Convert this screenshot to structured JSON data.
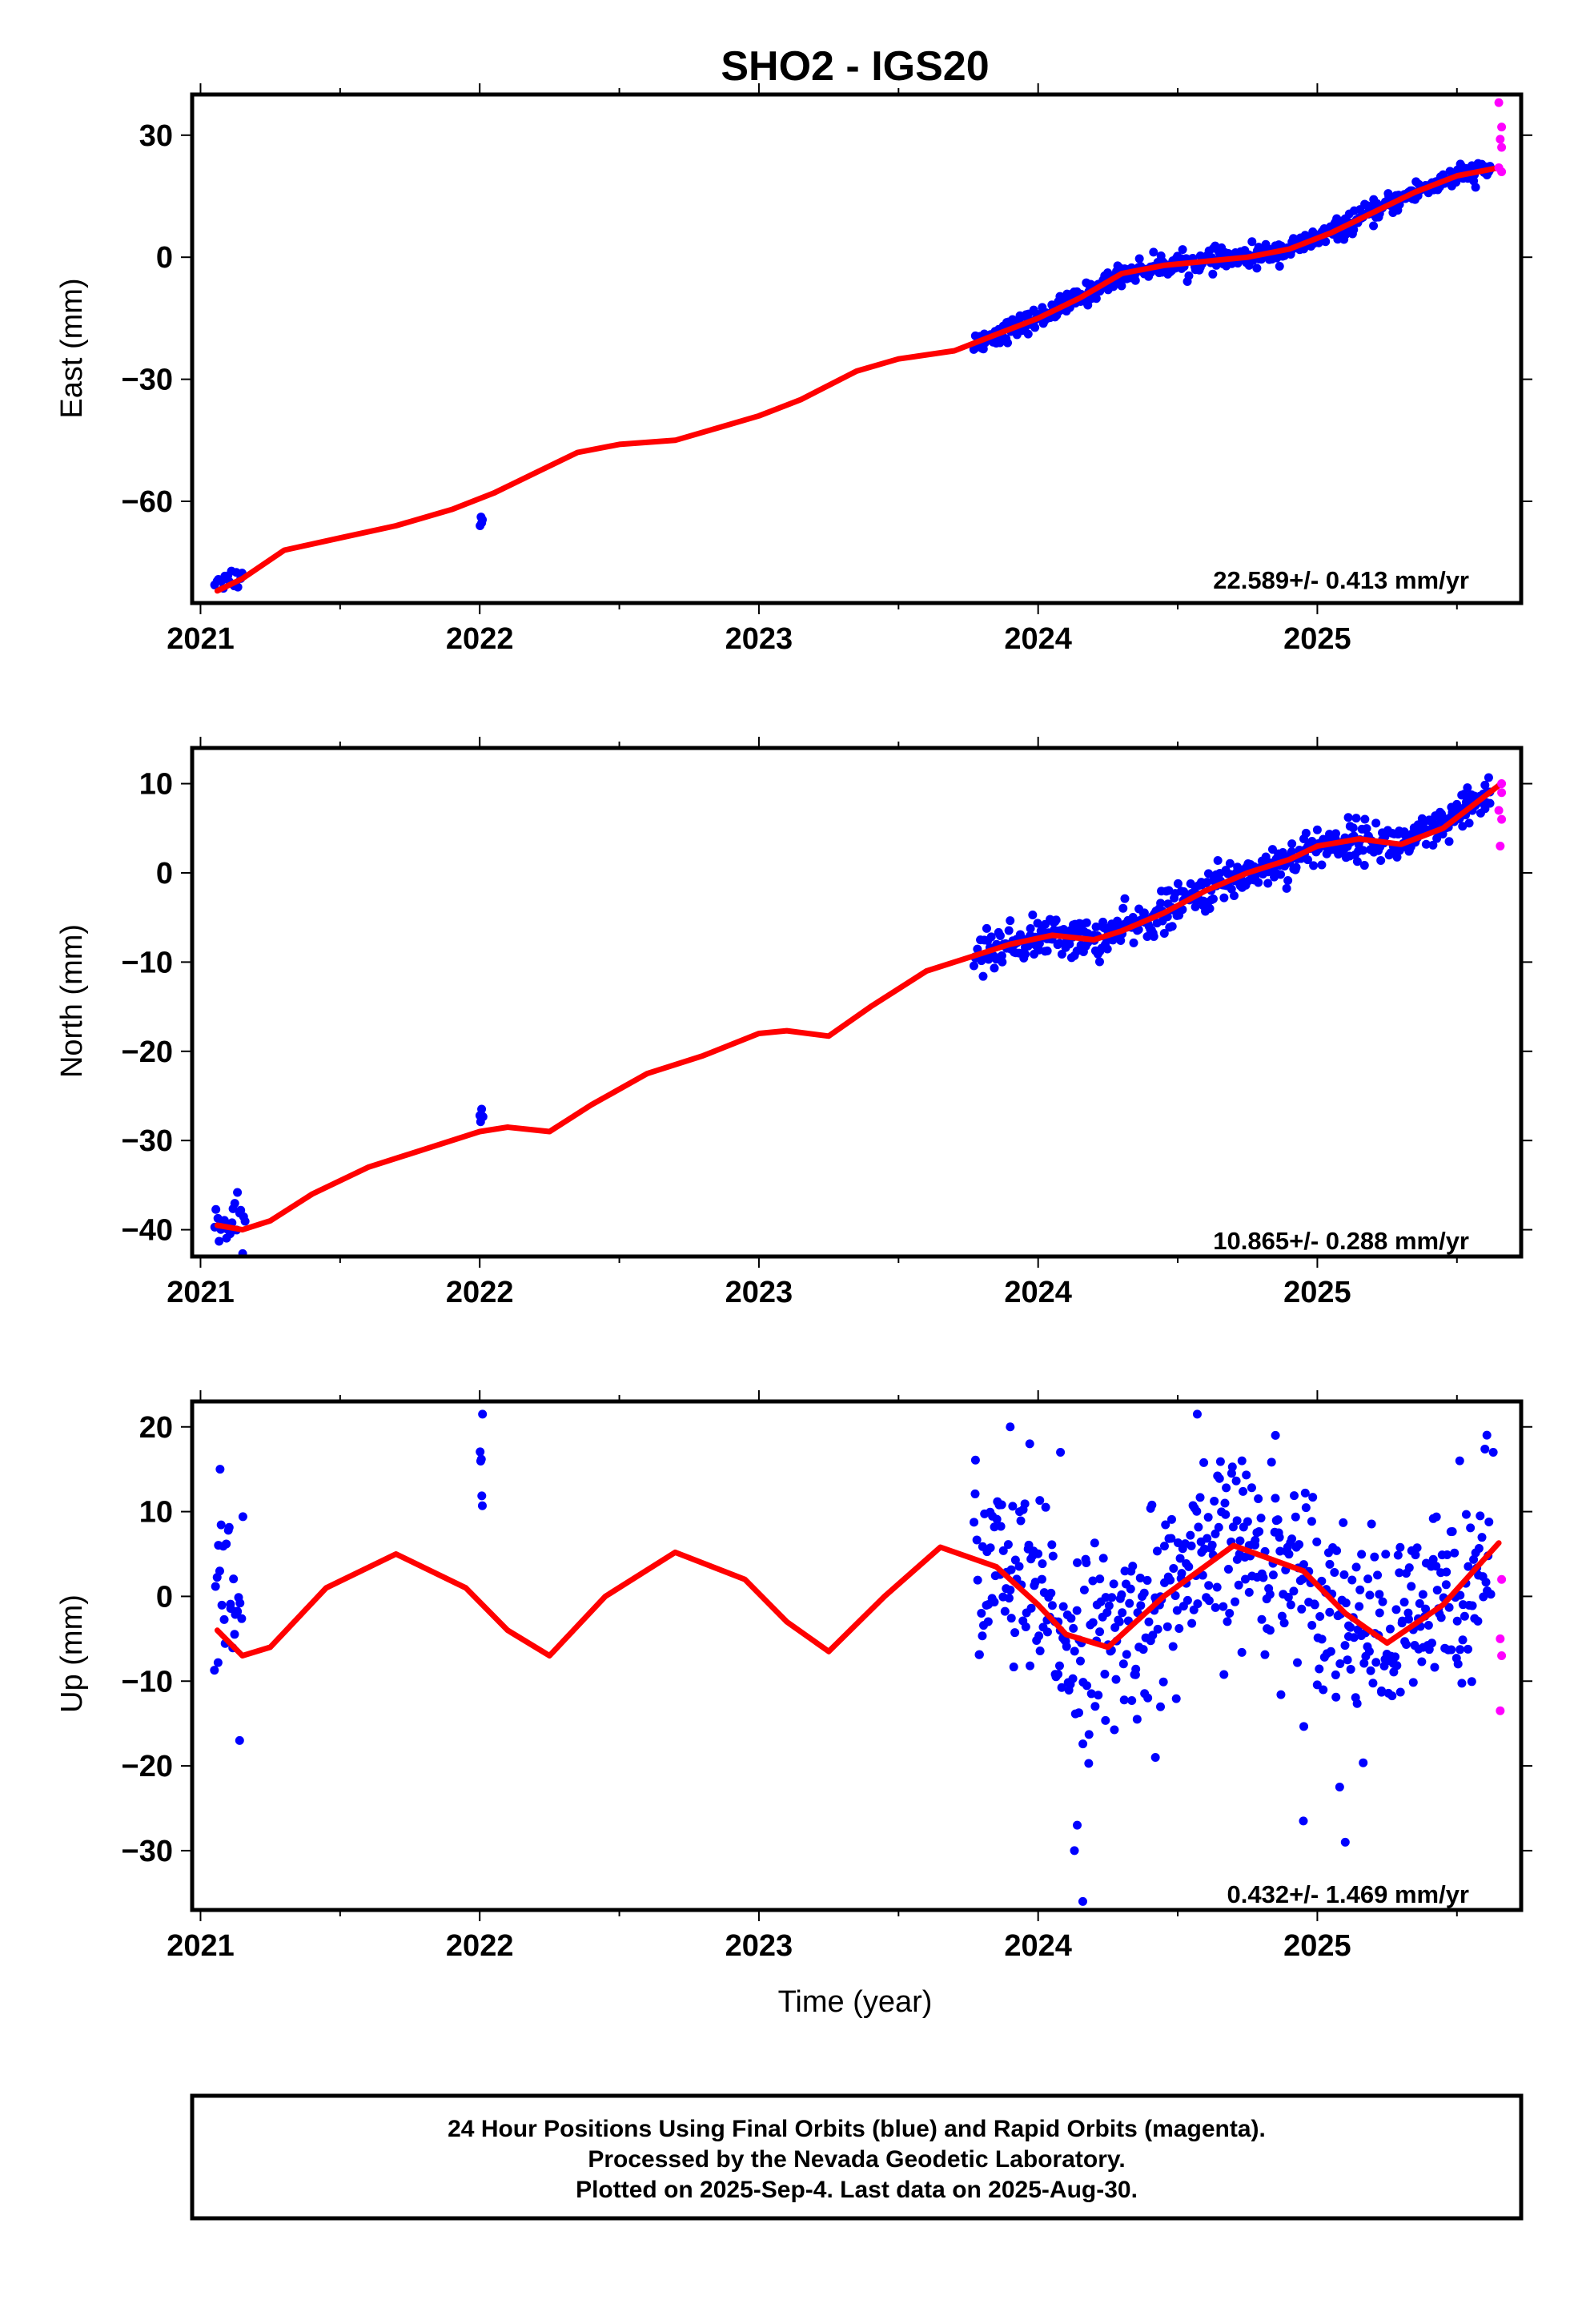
{
  "title": "SHO2 - IGS20",
  "colors": {
    "final": "#0000ff",
    "rapid": "#ff00ff",
    "model": "#ff0000",
    "frame": "#000000"
  },
  "x_label": "Time (year)",
  "footer": {
    "line1": "24 Hour Positions Using Final Orbits (blue) and Rapid Orbits (magenta).",
    "line2": "Processed by the Nevada Geodetic Laboratory.",
    "line3": "Plotted on 2025-Sep-4. Last data on 2025-Aug-30."
  },
  "chart_data": [
    {
      "type": "scatter",
      "component": "east",
      "ylabel": "East (mm)",
      "rate_text": "22.589+/- 0.413 mm/yr",
      "xlim": [
        2020.97,
        2025.73
      ],
      "ylim": [
        -85,
        40
      ],
      "x_ticks": [
        2021,
        2022,
        2023,
        2024,
        2025
      ],
      "x_tick_labels": [
        "2021",
        "2022",
        "2023",
        "2024",
        "2025"
      ],
      "y_ticks": [
        30,
        0,
        -30,
        -60
      ],
      "y_tick_labels": [
        "30",
        "0",
        "−30",
        "−60"
      ],
      "model": {
        "x": [
          2021.06,
          2021.15,
          2021.3,
          2021.5,
          2021.7,
          2021.9,
          2022.05,
          2022.2,
          2022.35,
          2022.5,
          2022.7,
          2022.85,
          2023.0,
          2023.15,
          2023.35,
          2023.5,
          2023.7,
          2023.85,
          2024.0,
          2024.15,
          2024.3,
          2024.45,
          2024.6,
          2024.75,
          2024.9,
          2025.05,
          2025.2,
          2025.35,
          2025.5,
          2025.65
        ],
        "y": [
          -82,
          -79,
          -72,
          -69,
          -66,
          -62,
          -58,
          -53,
          -48,
          -46,
          -45,
          -42,
          -39,
          -35,
          -28,
          -25,
          -23,
          -19,
          -15,
          -10,
          -4,
          -2,
          -1,
          0,
          2,
          6,
          11,
          16,
          20,
          22
        ]
      },
      "segments": [
        {
          "x0": 2021.05,
          "x1": 2021.15,
          "yc": -79,
          "a": 2,
          "noise": 1.5,
          "n": 14
        },
        {
          "x0": 2022.0,
          "x1": 2022.01,
          "yc": -64.5,
          "a": 0,
          "noise": 1,
          "n": 4
        },
        {
          "x0": 2023.77,
          "x1": 2025.62,
          "yc": 0,
          "a": 0,
          "noise": 1.3,
          "n": 520,
          "follow": true
        }
      ],
      "rapid": [
        {
          "x": 2025.65,
          "y": 38
        },
        {
          "x": 2025.66,
          "y": 32
        },
        {
          "x": 2025.655,
          "y": 29
        },
        {
          "x": 2025.66,
          "y": 27
        },
        {
          "x": 2025.65,
          "y": 22
        },
        {
          "x": 2025.66,
          "y": 21
        }
      ]
    },
    {
      "type": "scatter",
      "component": "north",
      "ylabel": "North (mm)",
      "rate_text": "10.865+/- 0.288 mm/yr",
      "xlim": [
        2020.97,
        2025.73
      ],
      "ylim": [
        -43,
        14
      ],
      "x_ticks": [
        2021,
        2022,
        2023,
        2024,
        2025
      ],
      "x_tick_labels": [
        "2021",
        "2022",
        "2023",
        "2024",
        "2025"
      ],
      "y_ticks": [
        10,
        0,
        -10,
        -20,
        -30,
        -40
      ],
      "y_tick_labels": [
        "10",
        "0",
        "−10",
        "−20",
        "−30",
        "−40"
      ],
      "model": {
        "x": [
          2021.06,
          2021.15,
          2021.25,
          2021.4,
          2021.6,
          2021.8,
          2022.0,
          2022.1,
          2022.25,
          2022.4,
          2022.6,
          2022.8,
          2023.0,
          2023.1,
          2023.25,
          2023.4,
          2023.6,
          2023.75,
          2023.9,
          2024.05,
          2024.2,
          2024.3,
          2024.45,
          2024.6,
          2024.75,
          2024.9,
          2025.0,
          2025.15,
          2025.3,
          2025.45,
          2025.65
        ],
        "y": [
          -39.5,
          -40,
          -39,
          -36,
          -33,
          -31,
          -29,
          -28.5,
          -29,
          -26,
          -22.5,
          -20.5,
          -18,
          -17.7,
          -18.3,
          -15,
          -11,
          -9.5,
          -8,
          -7,
          -7.5,
          -6.5,
          -4.5,
          -2,
          0,
          1.5,
          3,
          3.8,
          3.2,
          5,
          9.8
        ]
      },
      "segments": [
        {
          "x0": 2021.05,
          "x1": 2021.16,
          "yc": -39.5,
          "a": 0,
          "noise": 1.2,
          "n": 22
        },
        {
          "x0": 2022.0,
          "x1": 2022.01,
          "yc": -27.3,
          "a": 0,
          "noise": 0.8,
          "n": 5
        },
        {
          "x0": 2023.77,
          "x1": 2025.62,
          "yc": 0,
          "a": 0,
          "noise": 1.1,
          "n": 520,
          "follow": true
        }
      ],
      "rapid": [
        {
          "x": 2025.66,
          "y": 9
        },
        {
          "x": 2025.65,
          "y": 7
        },
        {
          "x": 2025.66,
          "y": 6
        },
        {
          "x": 2025.655,
          "y": 3
        },
        {
          "x": 2025.66,
          "y": 10
        }
      ]
    },
    {
      "type": "scatter",
      "component": "up",
      "ylabel": "Up (mm)",
      "rate_text": "0.432+/- 1.469 mm/yr",
      "xlim": [
        2020.97,
        2025.73
      ],
      "ylim": [
        -37,
        23
      ],
      "x_ticks": [
        2021,
        2022,
        2023,
        2024,
        2025
      ],
      "x_tick_labels": [
        "2021",
        "2022",
        "2023",
        "2024",
        "2025"
      ],
      "y_ticks": [
        20,
        10,
        0,
        -10,
        -20,
        -30
      ],
      "y_tick_labels": [
        "20",
        "10",
        "0",
        "−10",
        "−20",
        "−30"
      ],
      "model": {
        "x": [
          2021.06,
          2021.15,
          2021.25,
          2021.45,
          2021.7,
          2021.95,
          2022.1,
          2022.25,
          2022.45,
          2022.7,
          2022.95,
          2023.1,
          2023.25,
          2023.45,
          2023.65,
          2023.85,
          2024.0,
          2024.1,
          2024.25,
          2024.45,
          2024.7,
          2024.95,
          2025.1,
          2025.25,
          2025.45,
          2025.65
        ],
        "y": [
          -4,
          -7,
          -6,
          1,
          5,
          1,
          -4,
          -7,
          0,
          5.2,
          2,
          -3,
          -6.5,
          0,
          5.8,
          3.5,
          -1,
          -4.5,
          -6,
          0,
          6,
          3,
          -2,
          -5.5,
          -1,
          6.3
        ]
      },
      "segments": [
        {
          "x0": 2021.05,
          "x1": 2021.15,
          "yc": 1,
          "a": 0,
          "noise": 6,
          "n": 26
        },
        {
          "x0": 2022.0,
          "x1": 2022.01,
          "yc": 12,
          "a": 0,
          "noise": 5,
          "n": 5
        },
        {
          "x0": 2023.77,
          "x1": 2025.62,
          "yc": 0,
          "a": 0,
          "noise": 5.5,
          "n": 520,
          "follow": true
        }
      ],
      "outliers": [
        {
          "x": 2021.07,
          "y": 15
        },
        {
          "x": 2021.14,
          "y": -17
        },
        {
          "x": 2022.01,
          "y": 21.5
        },
        {
          "x": 2023.9,
          "y": 20
        },
        {
          "x": 2023.97,
          "y": 18
        },
        {
          "x": 2024.08,
          "y": 17
        },
        {
          "x": 2024.13,
          "y": -30
        },
        {
          "x": 2024.14,
          "y": -27
        },
        {
          "x": 2024.16,
          "y": -36
        },
        {
          "x": 2024.42,
          "y": -19
        },
        {
          "x": 2024.57,
          "y": 21.5
        },
        {
          "x": 2024.73,
          "y": 16
        },
        {
          "x": 2024.85,
          "y": 19
        },
        {
          "x": 2024.95,
          "y": -26.5
        },
        {
          "x": 2025.1,
          "y": -29
        },
        {
          "x": 2025.08,
          "y": -22.5
        },
        {
          "x": 2025.51,
          "y": 16
        },
        {
          "x": 2025.63,
          "y": 17
        }
      ],
      "rapid": [
        {
          "x": 2025.66,
          "y": 2
        },
        {
          "x": 2025.655,
          "y": -5
        },
        {
          "x": 2025.66,
          "y": -7
        },
        {
          "x": 2025.655,
          "y": -13.5
        }
      ]
    }
  ]
}
